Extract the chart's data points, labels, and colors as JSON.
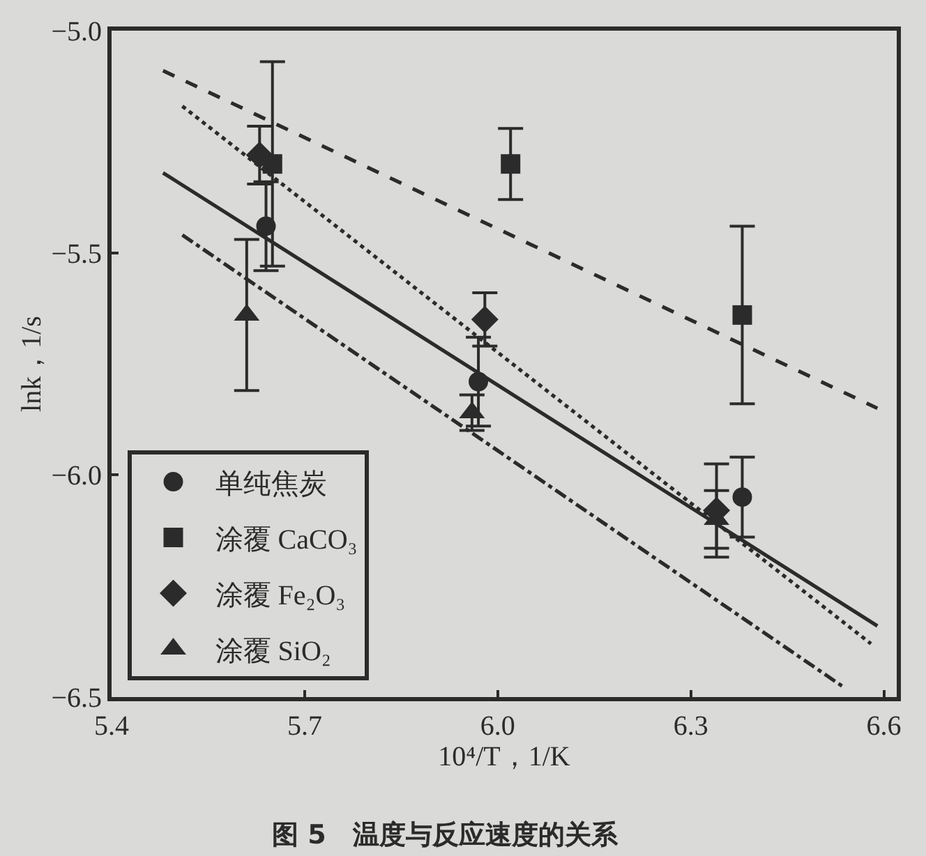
{
  "chart_data": {
    "type": "scatter",
    "xlabel": "10⁴/T，1/K",
    "ylabel": "lnk，1/s",
    "annotations": [
      "图 5　温度与反应速度的关系"
    ],
    "xlim": [
      5.4,
      6.62
    ],
    "ylim": [
      -6.5,
      -5.0
    ],
    "xticks": [
      5.4,
      5.7,
      {
        "value": 6,
        "label": "6.0"
      },
      6.3,
      6.6
    ],
    "yticks": [
      {
        "value": -6.5,
        "label": "−6.5"
      },
      {
        "value": -6,
        "label": "−6.0"
      },
      {
        "value": -5.5,
        "label": "−5.5"
      },
      {
        "value": -5,
        "label": "−5.0"
      }
    ],
    "legend": "bottom left",
    "series": [
      {
        "name": "单纯焦炭",
        "color": "#2b2b2b",
        "marker": "circle",
        "x": [
          5.64,
          5.97,
          6.38
        ],
        "values": [
          -5.44,
          -5.79,
          -6.05
        ],
        "errors": [
          0.1,
          0.1,
          0.09
        ]
      },
      {
        "type": "line",
        "color": "#2b2b2b",
        "line_style": "solid",
        "x": [
          5.48,
          6.59
        ],
        "values": [
          -5.32,
          -6.34
        ]
      },
      {
        "name": "涂覆 CaCO₃",
        "color": "#2b2b2b",
        "marker": "square",
        "x": [
          5.65,
          6.02,
          6.38
        ],
        "values": [
          -5.3,
          -5.3,
          -5.64
        ],
        "errors": [
          0.23,
          0.08,
          0.2
        ]
      },
      {
        "type": "line",
        "color": "#2b2b2b",
        "line_style": "dashed",
        "x": [
          5.48,
          6.59
        ],
        "values": [
          -5.09,
          -5.85
        ]
      },
      {
        "name": "涂覆 Fe₂O₃",
        "color": "#2b2b2b",
        "marker": "diamond",
        "x": [
          5.63,
          5.98,
          6.34
        ],
        "values": [
          -5.28,
          -5.65,
          -6.08
        ],
        "errors": [
          0.065,
          0.06,
          0.105
        ]
      },
      {
        "type": "line",
        "color": "#2b2b2b",
        "line_style": "dotted",
        "x": [
          5.51,
          6.58
        ],
        "values": [
          -5.17,
          -6.38
        ]
      },
      {
        "name": "涂覆 SiO₂",
        "color": "#2b2b2b",
        "marker": "triangle",
        "x": [
          5.61,
          5.96,
          6.34
        ],
        "values": [
          -5.64,
          -5.86,
          -6.1
        ],
        "errors": [
          0.17,
          0.04,
          0.065
        ]
      },
      {
        "type": "line",
        "color": "#2b2b2b",
        "line_style": "dashdot",
        "x": [
          5.51,
          6.54
        ],
        "values": [
          -5.46,
          -6.48
        ]
      }
    ]
  }
}
